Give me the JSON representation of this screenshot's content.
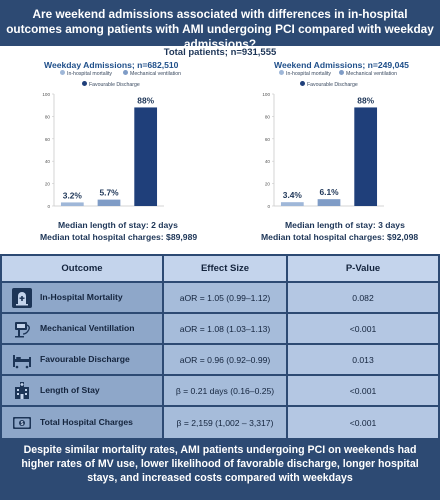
{
  "header": {
    "title": "Are weekend admissions associated with differences in in-hospital outcomes among patients with AMI undergoing PCI compared with weekday admissions?"
  },
  "total": "Total patients; n=931,555",
  "legend": [
    {
      "label": "In-hospital mortality",
      "color": "#9fb7d8"
    },
    {
      "label": "Mechanical ventilation",
      "color": "#7f9cc6"
    },
    {
      "label": "Favourable Discharge",
      "color": "#1f3f7a"
    }
  ],
  "chart_data": [
    {
      "type": "bar",
      "title": "Weekday Admissions; n=682,510",
      "categories": [
        "In-hospital mortality",
        "Mechanical ventilation",
        "Favourable Discharge"
      ],
      "values": [
        3.2,
        5.7,
        88
      ],
      "value_labels": [
        "3.2%",
        "5.7%",
        "88%"
      ],
      "colors": [
        "#9fb7d8",
        "#7f9cc6",
        "#1f3f7a"
      ],
      "ylim": [
        0,
        100
      ],
      "yticks": [
        0,
        20,
        40,
        60,
        80,
        100
      ],
      "legend_position": "top",
      "footnotes": [
        "Median length of stay: 2 days",
        "Median total hospital charges: $89,989"
      ]
    },
    {
      "type": "bar",
      "title": "Weekend Admissions; n=249,045",
      "categories": [
        "In-hospital mortality",
        "Mechanical ventilation",
        "Favourable Discharge"
      ],
      "values": [
        3.4,
        6.1,
        88
      ],
      "value_labels": [
        "3.4%",
        "6.1%",
        "88%"
      ],
      "colors": [
        "#9fb7d8",
        "#7f9cc6",
        "#1f3f7a"
      ],
      "ylim": [
        0,
        100
      ],
      "yticks": [
        0,
        20,
        40,
        60,
        80,
        100
      ],
      "legend_position": "top",
      "footnotes": [
        "Median length of stay: 3 days",
        "Median total hospital charges: $92,098"
      ]
    }
  ],
  "table": {
    "headers": [
      "Outcome",
      "Effect Size",
      "P-Value"
    ],
    "rows": [
      {
        "outcome": "In-Hospital Mortality",
        "effect": "aOR = 1.05 (0.99–1.12)",
        "p": "0.082",
        "icon": "tombstone-icon"
      },
      {
        "outcome": "Mechanical Ventillation",
        "effect": "aOR = 1.08 (1.03–1.13)",
        "p": "<0.001",
        "icon": "ventilator-icon"
      },
      {
        "outcome": "Favourable Discharge",
        "effect": "aOR = 0.96 (0.92–0.99)",
        "p": "0.013",
        "icon": "hospital-bed-icon"
      },
      {
        "outcome": "Length of Stay",
        "effect": "β = 0.21 days (0.16–0.25)",
        "p": "<0.001",
        "icon": "hospital-building-icon"
      },
      {
        "outcome": "Total Hospital Charges",
        "effect": "β = 2,159 (1,002 – 3,317)",
        "p": "<0.001",
        "icon": "money-icon"
      }
    ]
  },
  "conclusion": "Despite similar mortality rates, AMI patients undergoing PCI on weekends had higher rates of MV use, lower likelihood of favorable discharge, longer hospital stays, and increased costs compared with weekdays"
}
